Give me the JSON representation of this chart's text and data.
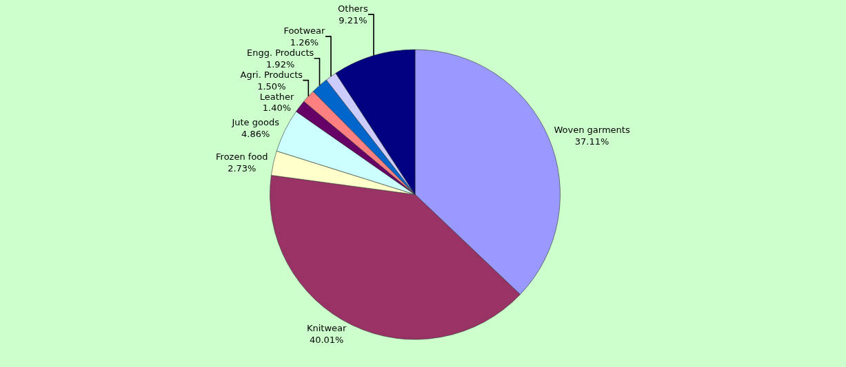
{
  "chart_data": {
    "type": "pie",
    "categories": [
      "Woven garments",
      "Knitwear",
      "Frozen food",
      "Jute goods",
      "Leather",
      "Agri. Products",
      "Engg. Products",
      "Footwear",
      "Others"
    ],
    "values": [
      37.11,
      40.01,
      2.73,
      4.86,
      1.4,
      1.5,
      1.92,
      1.26,
      9.21
    ],
    "value_labels": [
      "37.11%",
      "40.01%",
      "2.73%",
      "4.86%",
      "1.40%",
      "1.50%",
      "1.92%",
      "1.26%",
      "9.21%"
    ],
    "colors": [
      "#9999ff",
      "#993366",
      "#ffffcc",
      "#ccffff",
      "#660066",
      "#ff8080",
      "#0066cc",
      "#ccccff",
      "#000080"
    ]
  }
}
